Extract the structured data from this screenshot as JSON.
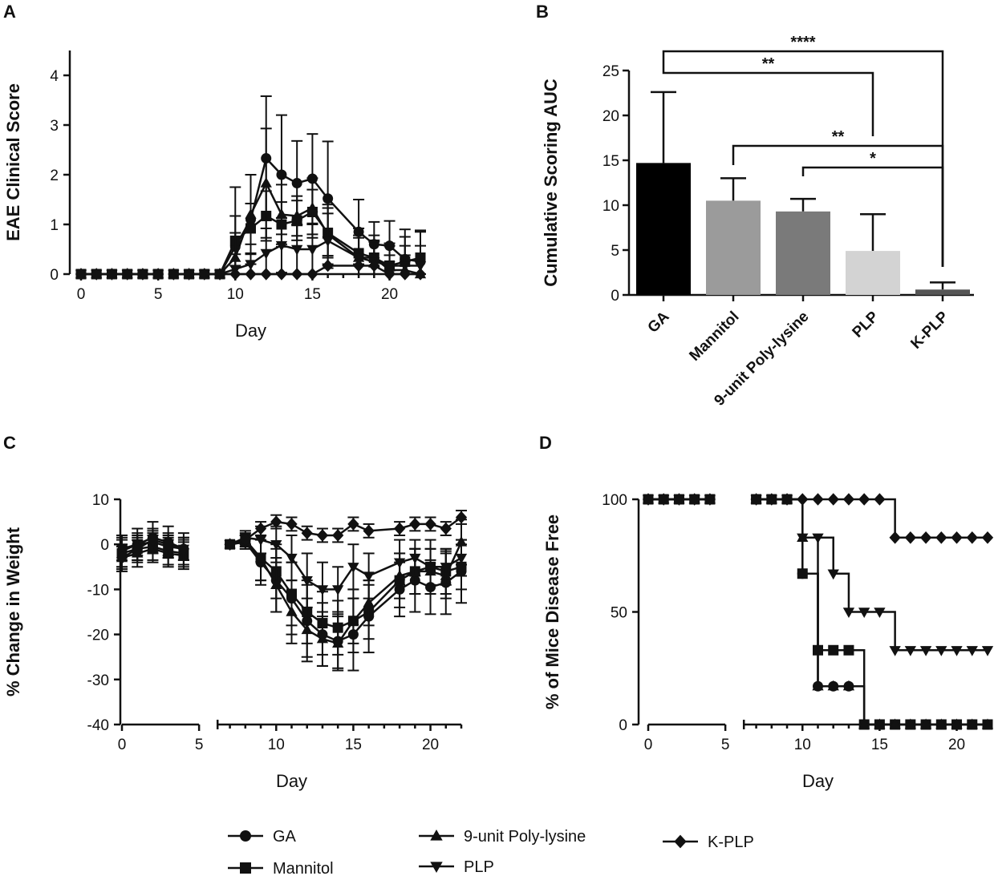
{
  "chart_data": [
    {
      "panel": "A",
      "type": "line",
      "title": "",
      "xlabel": "Day",
      "ylabel": "EAE Clinical Score",
      "xlim": [
        0,
        22
      ],
      "ylim": [
        0,
        4.5
      ],
      "xticks": [
        "0",
        "5",
        "10",
        "15",
        "20"
      ],
      "yticks": [
        "0",
        "1",
        "2",
        "3",
        "4"
      ],
      "series": [
        {
          "name": "GA",
          "marker": "circle",
          "x": [
            0,
            1,
            2,
            3,
            4,
            5,
            6,
            7,
            8,
            9,
            10,
            11,
            12,
            13,
            14,
            15,
            16,
            18,
            19,
            20,
            21,
            22
          ],
          "y": [
            0,
            0,
            0,
            0,
            0,
            0,
            0,
            0,
            0,
            0,
            0.55,
            1.1,
            2.33,
            2.0,
            1.83,
            1.92,
            1.52,
            0.85,
            0.6,
            0.57,
            0.3,
            0.25
          ],
          "err": [
            0,
            0,
            0,
            0,
            0,
            0,
            0,
            0,
            0,
            0,
            1.2,
            0.9,
            1.25,
            1.2,
            0.85,
            0.9,
            1.15,
            0.65,
            0.45,
            0.5,
            0.6,
            0.6
          ]
        },
        {
          "name": "Mannitol",
          "marker": "square",
          "x": [
            0,
            1,
            2,
            3,
            4,
            5,
            6,
            7,
            8,
            9,
            10,
            11,
            12,
            13,
            14,
            15,
            16,
            18,
            19,
            20,
            21,
            22
          ],
          "y": [
            0,
            0,
            0,
            0,
            0,
            0,
            0,
            0,
            0,
            0,
            0.67,
            0.92,
            1.17,
            1.0,
            1.08,
            1.25,
            0.83,
            0.42,
            0.33,
            0.17,
            0.25,
            0.33
          ],
          "err": [
            0,
            0,
            0,
            0,
            0,
            0,
            0,
            0,
            0,
            0,
            0.5,
            0.5,
            0.5,
            0.45,
            0.4,
            0.45,
            0.5,
            0.5,
            0.45,
            0.45,
            0.5,
            0.55
          ]
        },
        {
          "name": "9-unit Poly-lysine",
          "marker": "triangle-up",
          "x": [
            0,
            1,
            2,
            3,
            4,
            5,
            6,
            7,
            8,
            9,
            10,
            11,
            12,
            13,
            14,
            15,
            16,
            18,
            19,
            20,
            21,
            22
          ],
          "y": [
            0,
            0,
            0,
            0,
            0,
            0,
            0,
            0,
            0,
            0,
            0.33,
            1.2,
            1.83,
            1.2,
            1.17,
            1.33,
            0.8,
            0.33,
            0.33,
            0.08,
            0.08,
            0
          ],
          "err": [
            0,
            0,
            0,
            0,
            0,
            0,
            0,
            0,
            0,
            0,
            0.5,
            0.8,
            1.1,
            0.6,
            0.4,
            0.6,
            0.6,
            0.4,
            0.35,
            0.3,
            0.3,
            0
          ]
        },
        {
          "name": "PLP",
          "marker": "triangle-down",
          "x": [
            0,
            1,
            2,
            3,
            4,
            5,
            6,
            7,
            8,
            9,
            10,
            11,
            12,
            13,
            14,
            15,
            16,
            18,
            19,
            20,
            21,
            22
          ],
          "y": [
            0,
            0,
            0,
            0,
            0,
            0,
            0,
            0,
            0,
            0,
            0.1,
            0.2,
            0.42,
            0.58,
            0.5,
            0.5,
            0.67,
            0.33,
            0.25,
            0.17,
            0.17,
            0.17
          ],
          "err": [
            0,
            0,
            0,
            0,
            0,
            0,
            0,
            0,
            0,
            0,
            0.3,
            0.4,
            0.5,
            0.55,
            0.5,
            0.5,
            0.55,
            0.45,
            0.4,
            0.4,
            0.4,
            0.4
          ]
        },
        {
          "name": "K-PLP",
          "marker": "diamond",
          "x": [
            0,
            1,
            2,
            3,
            4,
            5,
            6,
            7,
            8,
            9,
            10,
            11,
            12,
            13,
            14,
            15,
            16,
            18,
            19,
            20,
            21,
            22
          ],
          "y": [
            0,
            0,
            0,
            0,
            0,
            0,
            0,
            0,
            0,
            0,
            0,
            0,
            0,
            0,
            0,
            0,
            0.17,
            0.17,
            0.17,
            0,
            0,
            0
          ],
          "err": [
            0,
            0,
            0,
            0,
            0,
            0,
            0,
            0,
            0,
            0,
            0,
            0,
            0,
            0,
            0,
            0,
            0,
            0,
            0,
            0,
            0,
            0
          ]
        }
      ]
    },
    {
      "panel": "B",
      "type": "bar",
      "title": "",
      "xlabel": "",
      "ylabel": "Cumulative Scoring AUC",
      "ylim": [
        0,
        25
      ],
      "yticks": [
        "0",
        "5",
        "10",
        "15",
        "20",
        "25"
      ],
      "categories": [
        "GA",
        "Mannitol",
        "9-unit Poly-lysine",
        "PLP",
        "K-PLP"
      ],
      "values": [
        14.7,
        10.5,
        9.3,
        4.9,
        0.6
      ],
      "errors": [
        7.9,
        2.5,
        1.4,
        4.1,
        0.8
      ],
      "colors": [
        "#000000",
        "#9b9b9b",
        "#7a7a7a",
        "#d3d3d3",
        "#555555"
      ],
      "significance": [
        {
          "from": "GA",
          "to": "K-PLP",
          "label": "****"
        },
        {
          "from": "GA",
          "to": "PLP",
          "label": "**"
        },
        {
          "from": "Mannitol",
          "to": "K-PLP",
          "label": "**"
        },
        {
          "from": "9-unit Poly-lysine",
          "to": "K-PLP",
          "label": "*"
        }
      ]
    },
    {
      "panel": "C",
      "type": "line",
      "title": "",
      "xlabel": "Day",
      "ylabel": "% Change in  Weight",
      "xlim": [
        0,
        22
      ],
      "ylim": [
        -40,
        10
      ],
      "xticks": [
        "0",
        "5",
        "10",
        "15",
        "20"
      ],
      "yticks": [
        "10",
        "0",
        "-10",
        "-20",
        "-30",
        "-40"
      ],
      "series": [
        {
          "name": "GA",
          "marker": "circle",
          "x": [
            0,
            1,
            2,
            3,
            4,
            7,
            8,
            9,
            10,
            11,
            12,
            13,
            14,
            15,
            16,
            18,
            19,
            20,
            21,
            22
          ],
          "y": [
            -1.5,
            0,
            1.5,
            0.5,
            -1,
            0,
            0.5,
            -4,
            -8,
            -12,
            -17,
            -20,
            -21.5,
            -20,
            -16,
            -10,
            -8,
            -9.5,
            -8.5,
            -6
          ],
          "err": [
            3.5,
            3.5,
            3.5,
            3.5,
            3.5,
            0,
            1.5,
            5,
            7,
            8,
            8,
            7,
            6,
            8,
            8,
            6,
            7,
            6,
            7,
            7
          ]
        },
        {
          "name": "Mannitol",
          "marker": "square",
          "x": [
            0,
            1,
            2,
            3,
            4,
            7,
            8,
            9,
            10,
            11,
            12,
            13,
            14,
            15,
            16,
            18,
            19,
            20,
            21,
            22
          ],
          "y": [
            -2,
            -1,
            -0.5,
            -1.5,
            -2,
            0,
            1,
            -3,
            -6,
            -11,
            -15,
            -17.5,
            -18.5,
            -17,
            -15,
            -8,
            -6,
            -5,
            -6,
            -5
          ],
          "err": [
            3,
            3,
            3,
            3,
            3,
            0,
            1.5,
            5,
            6,
            7,
            7,
            7,
            6,
            7,
            6,
            6,
            5,
            6,
            5,
            5
          ]
        },
        {
          "name": "9-unit Poly-lysine",
          "marker": "triangle-up",
          "x": [
            0,
            1,
            2,
            3,
            4,
            7,
            8,
            9,
            10,
            11,
            12,
            13,
            14,
            15,
            16,
            18,
            19,
            20,
            21,
            22
          ],
          "y": [
            -3,
            -2,
            -1,
            -2,
            -2.5,
            0,
            0.5,
            -3,
            -9,
            -15,
            -19,
            -21,
            -22,
            -17,
            -13,
            -7,
            -6,
            -6,
            -7,
            0.5
          ],
          "err": [
            3,
            3,
            3,
            3,
            3,
            0,
            1.5,
            5,
            6,
            7,
            7,
            6,
            6,
            5,
            5,
            5,
            5,
            5,
            5,
            5
          ]
        },
        {
          "name": "PLP",
          "marker": "triangle-down",
          "x": [
            0,
            1,
            2,
            3,
            4,
            7,
            8,
            9,
            10,
            11,
            12,
            13,
            14,
            15,
            16,
            18,
            19,
            20,
            21,
            22
          ],
          "y": [
            -1,
            0,
            0.5,
            -0.5,
            -1,
            0,
            1.5,
            1,
            0,
            -3,
            -8,
            -10,
            -10,
            -5,
            -7,
            -4,
            -3,
            -5,
            -5,
            -3
          ],
          "err": [
            2.5,
            2.5,
            2.5,
            2.5,
            2.5,
            0,
            1.5,
            3,
            4,
            5,
            6,
            6,
            5,
            5,
            5,
            5,
            4,
            4,
            4,
            4
          ]
        },
        {
          "name": "K-PLP",
          "marker": "diamond",
          "x": [
            0,
            1,
            2,
            3,
            4,
            7,
            8,
            9,
            10,
            11,
            12,
            13,
            14,
            15,
            16,
            18,
            19,
            20,
            21,
            22
          ],
          "y": [
            -3,
            -1,
            1,
            0,
            -1,
            0,
            1,
            3.5,
            5,
            4.5,
            2.5,
            2,
            2,
            4.5,
            3,
            3.5,
            4.5,
            4.5,
            3.5,
            6
          ],
          "err": [
            2.5,
            2.5,
            2.5,
            2.5,
            2.5,
            0,
            1,
            1.5,
            1.5,
            1.5,
            1.5,
            1.5,
            1.5,
            1.5,
            1.5,
            1.5,
            1.5,
            1.5,
            1.5,
            1.5
          ]
        }
      ]
    },
    {
      "panel": "D",
      "type": "line",
      "title": "",
      "xlabel": "Day",
      "ylabel": "% of Mice Disease Free",
      "xlim": [
        0,
        22
      ],
      "ylim": [
        0,
        100
      ],
      "xticks": [
        "0",
        "5",
        "10",
        "15",
        "20"
      ],
      "yticks": [
        "0",
        "50",
        "100"
      ],
      "series": [
        {
          "name": "GA",
          "marker": "circle",
          "x": [
            0,
            1,
            2,
            3,
            4,
            7,
            8,
            9,
            10,
            11,
            12,
            13,
            14,
            15,
            16,
            17,
            18,
            19,
            20,
            21,
            22
          ],
          "y": [
            100,
            100,
            100,
            100,
            100,
            100,
            100,
            100,
            67,
            17,
            17,
            17,
            0,
            0,
            0,
            0,
            0,
            0,
            0,
            0,
            0
          ]
        },
        {
          "name": "Mannitol",
          "marker": "square",
          "x": [
            0,
            1,
            2,
            3,
            4,
            7,
            8,
            9,
            10,
            11,
            12,
            13,
            14,
            15,
            16,
            17,
            18,
            19,
            20,
            21,
            22
          ],
          "y": [
            100,
            100,
            100,
            100,
            100,
            100,
            100,
            100,
            67,
            33,
            33,
            33,
            0,
            0,
            0,
            0,
            0,
            0,
            0,
            0,
            0
          ]
        },
        {
          "name": "9-unit Poly-lysine",
          "marker": "triangle-up",
          "x": [
            0,
            1,
            2,
            3,
            4,
            7,
            8,
            9,
            10,
            11,
            12,
            13,
            14,
            15,
            16,
            17,
            18,
            19,
            20,
            21,
            22
          ],
          "y": [
            100,
            100,
            100,
            100,
            100,
            100,
            100,
            100,
            83,
            17,
            17,
            17,
            0,
            0,
            0,
            0,
            0,
            0,
            0,
            0,
            0
          ]
        },
        {
          "name": "PLP",
          "marker": "triangle-down",
          "x": [
            0,
            1,
            2,
            3,
            4,
            7,
            8,
            9,
            10,
            11,
            12,
            13,
            14,
            15,
            16,
            17,
            18,
            19,
            20,
            21,
            22
          ],
          "y": [
            100,
            100,
            100,
            100,
            100,
            100,
            100,
            100,
            83,
            83,
            67,
            50,
            50,
            50,
            33,
            33,
            33,
            33,
            33,
            33,
            33
          ]
        },
        {
          "name": "K-PLP",
          "marker": "diamond",
          "x": [
            0,
            1,
            2,
            3,
            4,
            7,
            8,
            9,
            10,
            11,
            12,
            13,
            14,
            15,
            16,
            17,
            18,
            19,
            20,
            21,
            22
          ],
          "y": [
            100,
            100,
            100,
            100,
            100,
            100,
            100,
            100,
            100,
            100,
            100,
            100,
            100,
            100,
            83,
            83,
            83,
            83,
            83,
            83,
            83
          ]
        }
      ]
    }
  ],
  "legend": [
    "GA",
    "Mannitol",
    "9-unit Poly-lysine",
    "PLP",
    "K-PLP"
  ]
}
